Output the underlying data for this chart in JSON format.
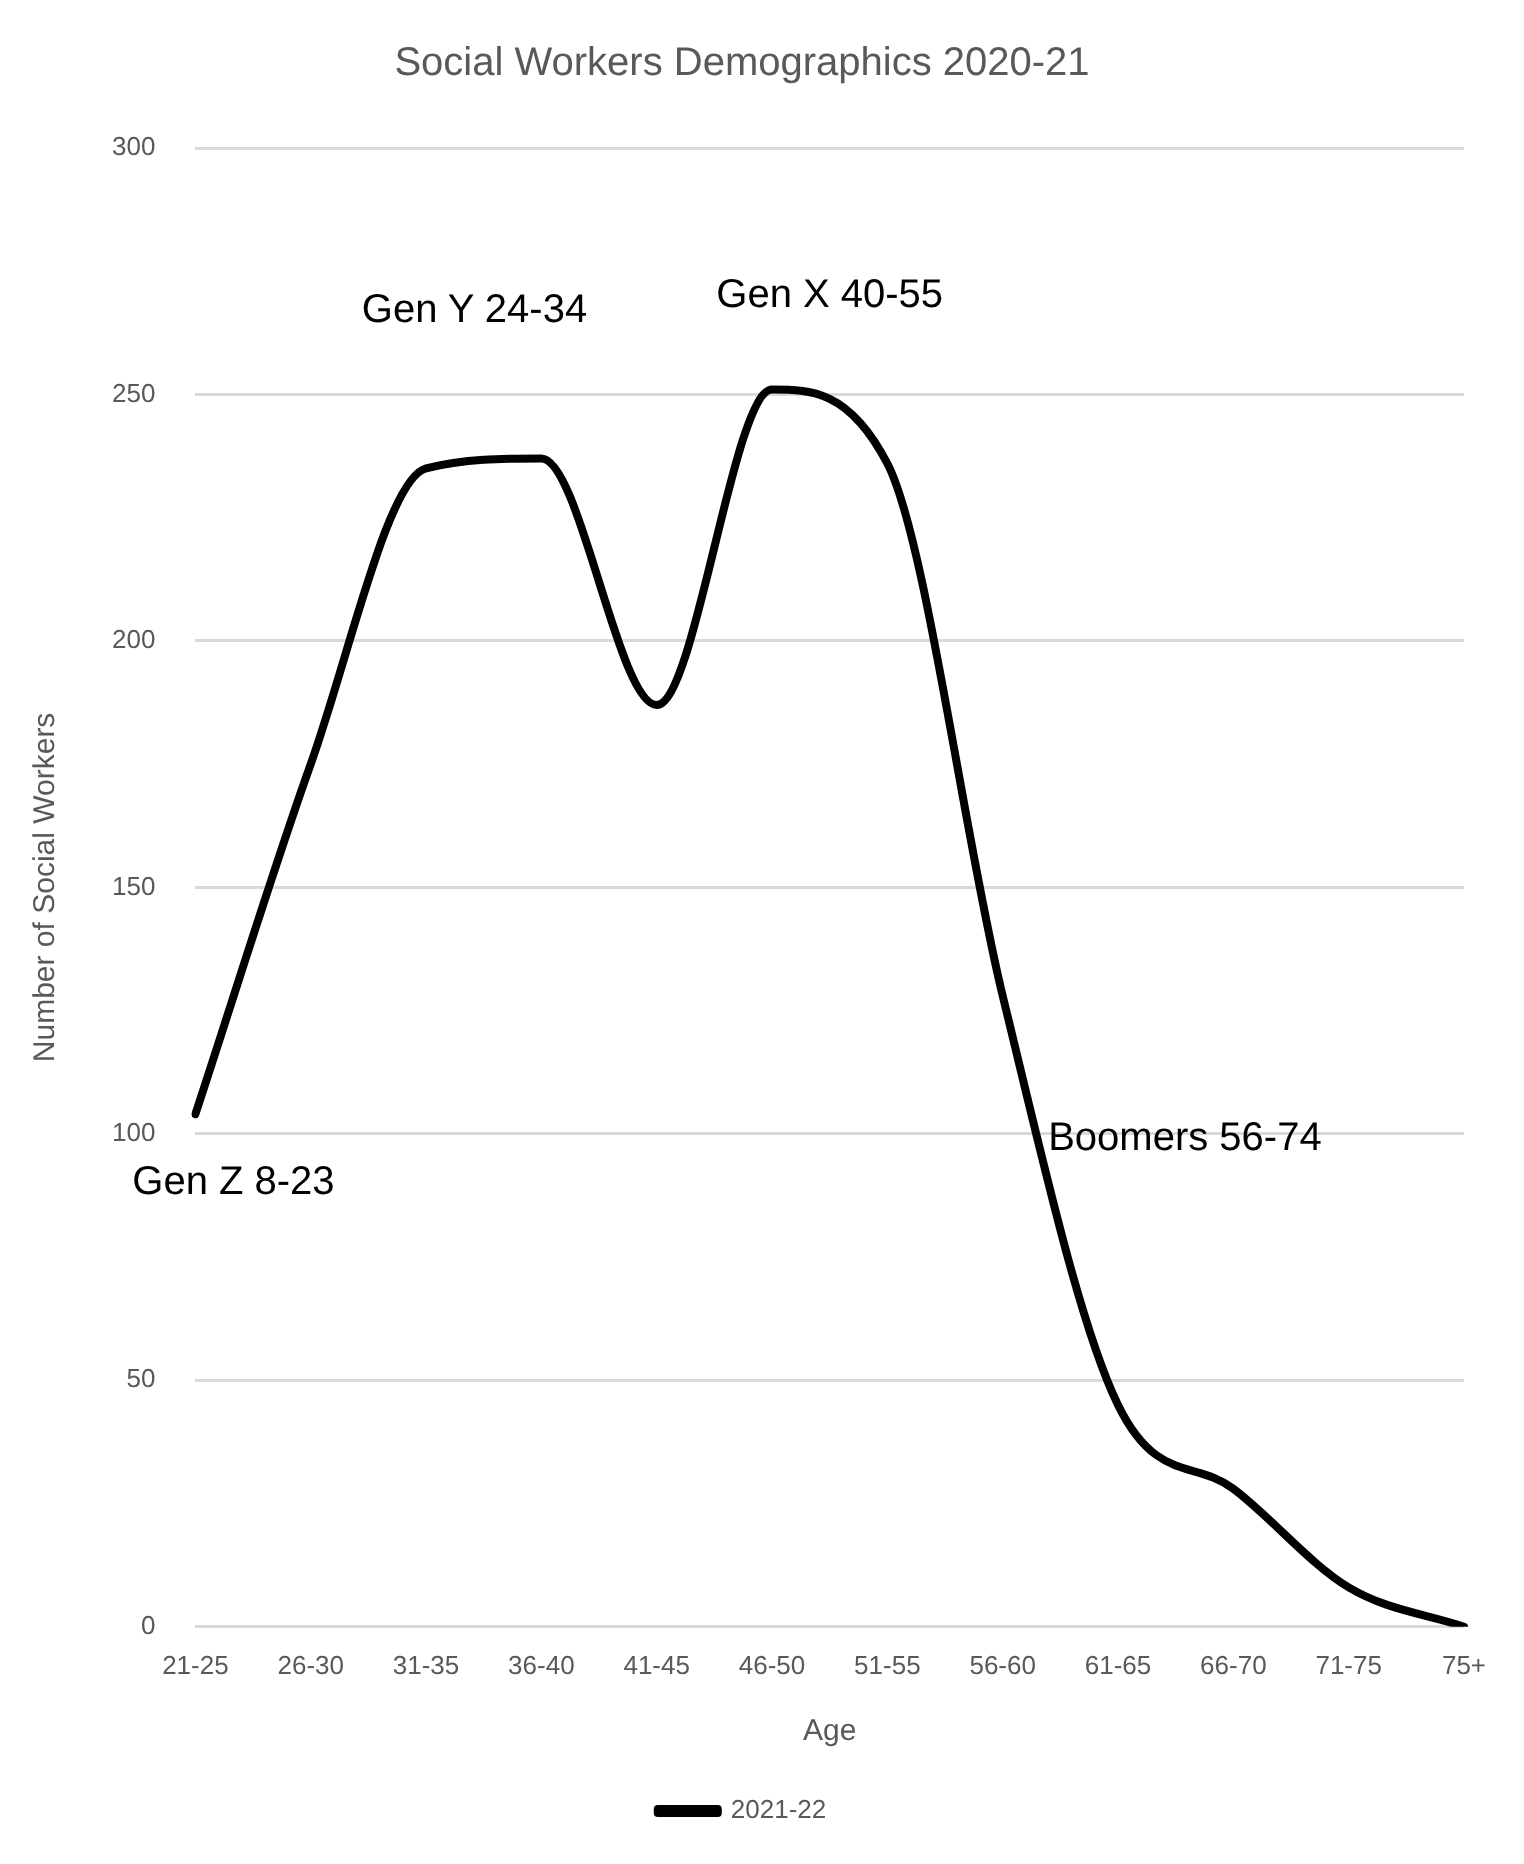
{
  "chart_data": {
    "type": "line",
    "title": "Social Workers Demographics 2020-21",
    "xlabel": "Age",
    "ylabel": "Number of Social Workers",
    "categories": [
      "21-25",
      "26-30",
      "31-35",
      "36-40",
      "41-45",
      "46-50",
      "51-55",
      "56-60",
      "61-65",
      "66-70",
      "71-75",
      "75+"
    ],
    "series": [
      {
        "name": "2021-22",
        "color": "#000000",
        "values": [
          104,
          175,
          235,
          237,
          187,
          251,
          236,
          128,
          45,
          28,
          8,
          0
        ]
      }
    ],
    "ylim": [
      0,
      300
    ],
    "yticks": [
      0,
      50,
      100,
      150,
      200,
      250,
      300
    ],
    "grid": "y",
    "legend": "bottom",
    "marker": "none",
    "line_style": "solid",
    "annotations": [
      "Gen Z 8-23",
      "Gen Y 24-34",
      "Gen X 40-55",
      "Boomers 56-74"
    ]
  }
}
